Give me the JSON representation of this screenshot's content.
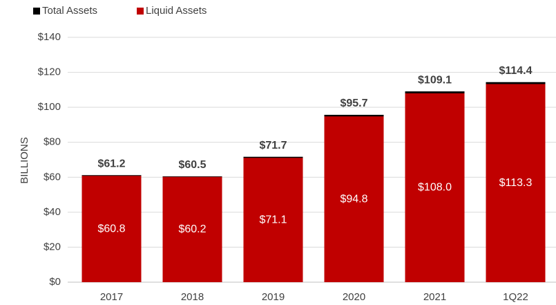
{
  "chart_data": {
    "type": "bar",
    "y_label": "BILLIONS",
    "categories": [
      "2017",
      "2018",
      "2019",
      "2020",
      "2021",
      "1Q22"
    ],
    "series": [
      {
        "name": "Total Assets",
        "color": "#000000",
        "values": [
          61.2,
          60.5,
          71.7,
          95.7,
          109.1,
          114.4
        ],
        "value_labels": [
          "$61.2",
          "$60.5",
          "$71.7",
          "$95.7",
          "$109.1",
          "$114.4"
        ]
      },
      {
        "name": "Liquid Assets",
        "color": "#c00000",
        "values": [
          60.8,
          60.2,
          71.1,
          94.8,
          108.0,
          113.3
        ],
        "value_labels": [
          "$60.8",
          "$60.2",
          "$71.1",
          "$94.8",
          "$108.0",
          "$113.3"
        ]
      }
    ],
    "ylim": [
      0,
      140
    ],
    "yticks": [
      {
        "value": 0,
        "label": "$0"
      },
      {
        "value": 20,
        "label": "$20"
      },
      {
        "value": 40,
        "label": "$40"
      },
      {
        "value": 60,
        "label": "$60"
      },
      {
        "value": 80,
        "label": "$80"
      },
      {
        "value": 100,
        "label": "$100"
      },
      {
        "value": 120,
        "label": "$120"
      },
      {
        "value": 140,
        "label": "$140"
      }
    ],
    "grid": true,
    "legend": "top-left"
  }
}
